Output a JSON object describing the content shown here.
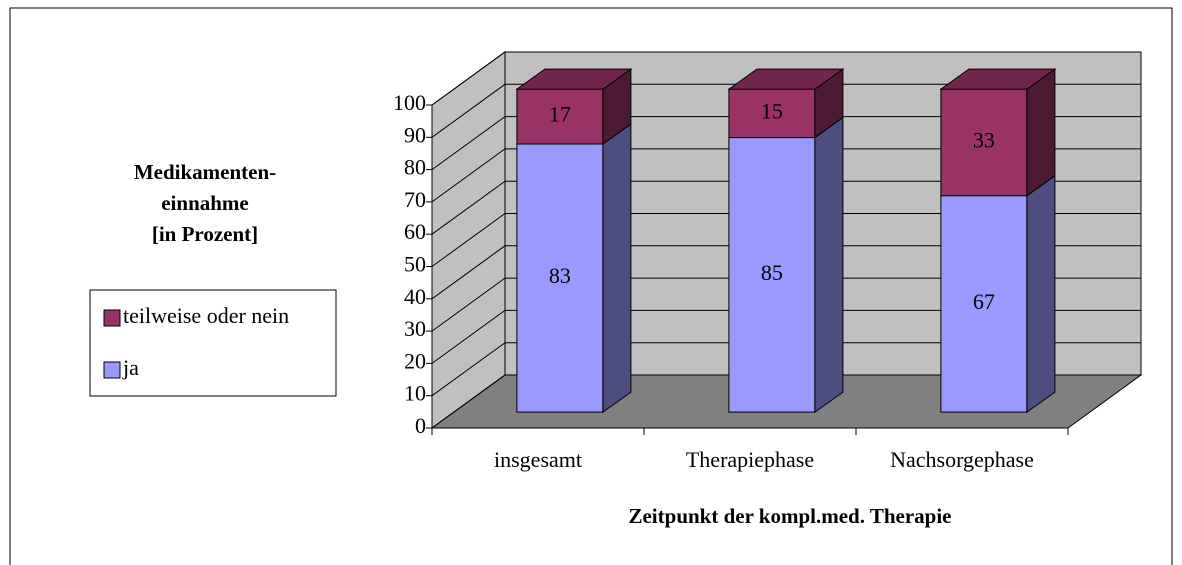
{
  "chart_data": {
    "type": "bar3d_stacked",
    "y_label": [
      "Medikamenten-",
      "einnahme",
      "[in Prozent]"
    ],
    "x_label": "Zeitpunkt der kompl.med. Therapie",
    "categories": [
      "insgesamt",
      "Therapiephase",
      "Nachsorgephase"
    ],
    "series": [
      {
        "name": "ja",
        "color": "#9999ff",
        "values": [
          83,
          85,
          67
        ]
      },
      {
        "name": "teilweise oder nein",
        "color": "#993366",
        "values": [
          17,
          15,
          33
        ]
      }
    ],
    "ylim": [
      0,
      100
    ],
    "yticks": [
      0,
      10,
      20,
      30,
      40,
      50,
      60,
      70,
      80,
      90,
      100
    ],
    "grid": true,
    "legend": "left"
  }
}
